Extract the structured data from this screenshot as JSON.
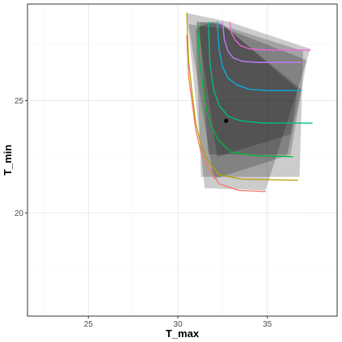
{
  "chart_data": {
    "type": "line",
    "title": "",
    "xlabel": "T_max",
    "ylabel": "T_min",
    "xlim": [
      21.6,
      38.9
    ],
    "ylim": [
      15.4,
      29.3
    ],
    "x_ticks": [
      25,
      30,
      35
    ],
    "y_ticks": [
      20,
      25
    ],
    "x_tick_labels": [
      "25",
      "30",
      "35"
    ],
    "y_tick_labels": [
      "20",
      "25"
    ],
    "grid": true,
    "legend": "none",
    "colors": {
      "background": "#ffffff",
      "panel_border": "#333333",
      "grid_major": "#ebebeb",
      "grid_minor": "#f5f5f5",
      "band_fill": "#000000",
      "point": "#000000"
    },
    "bands": [
      {
        "opacity": 0.2,
        "polygon": [
          [
            30.5,
            28.9
          ],
          [
            32.9,
            28.5
          ],
          [
            37.4,
            27.3
          ],
          [
            34.9,
            21.0
          ],
          [
            31.5,
            21.1
          ],
          [
            30.5,
            28.9
          ]
        ]
      },
      {
        "opacity": 0.2,
        "polygon": [
          [
            30.6,
            28.4
          ],
          [
            32.7,
            28.2
          ],
          [
            37.2,
            26.8
          ],
          [
            36.3,
            22.6
          ],
          [
            32.0,
            21.5
          ],
          [
            30.6,
            28.4
          ]
        ]
      },
      {
        "opacity": 0.2,
        "polygon": [
          [
            31.1,
            28.5
          ],
          [
            32.5,
            28.4
          ],
          [
            36.7,
            25.5
          ],
          [
            36.3,
            23.5
          ],
          [
            32.2,
            22.5
          ],
          [
            31.1,
            28.5
          ]
        ]
      },
      {
        "opacity": 0.2,
        "polygon": [
          [
            31.2,
            28.5
          ],
          [
            32.3,
            28.5
          ],
          [
            36.9,
            25.5
          ],
          [
            36.1,
            22.6
          ],
          [
            31.7,
            22.6
          ],
          [
            31.2,
            28.5
          ]
        ]
      },
      {
        "opacity": 0.2,
        "polygon": [
          [
            31.0,
            28.2
          ],
          [
            31.9,
            28.5
          ],
          [
            37.0,
            27.2
          ],
          [
            36.8,
            21.6
          ],
          [
            31.3,
            21.6
          ],
          [
            31.0,
            28.2
          ]
        ]
      }
    ],
    "series": [
      {
        "color": "#f8766d",
        "points": [
          [
            30.5,
            27.9
          ],
          [
            30.6,
            26.1
          ],
          [
            30.8,
            24.9
          ],
          [
            31.0,
            23.7
          ],
          [
            31.3,
            22.7
          ],
          [
            31.7,
            22.0
          ],
          [
            32.3,
            21.3
          ],
          [
            33.4,
            21.0
          ],
          [
            34.9,
            20.95
          ]
        ]
      },
      {
        "color": "#b79f00",
        "points": [
          [
            30.5,
            28.9
          ],
          [
            30.6,
            26.8
          ],
          [
            30.8,
            25.3
          ],
          [
            31.0,
            24.0
          ],
          [
            31.3,
            23.0
          ],
          [
            31.7,
            22.3
          ],
          [
            32.3,
            21.7
          ],
          [
            33.6,
            21.5
          ],
          [
            36.7,
            21.45
          ]
        ]
      },
      {
        "color": "#00ba38",
        "points": [
          [
            31.1,
            28.5
          ],
          [
            31.2,
            26.9
          ],
          [
            31.4,
            25.6
          ],
          [
            31.6,
            24.6
          ],
          [
            31.9,
            23.8
          ],
          [
            32.3,
            23.2
          ],
          [
            33.0,
            22.7
          ],
          [
            34.3,
            22.55
          ],
          [
            36.4,
            22.5
          ]
        ]
      },
      {
        "color": "#00c08b",
        "points": [
          [
            31.7,
            28.5
          ],
          [
            31.8,
            26.6
          ],
          [
            32.0,
            25.5
          ],
          [
            32.3,
            24.8
          ],
          [
            32.8,
            24.3
          ],
          [
            33.5,
            24.1
          ],
          [
            34.8,
            24.0
          ],
          [
            37.5,
            24.0
          ]
        ]
      },
      {
        "color": "#00b4ef",
        "points": [
          [
            32.2,
            28.5
          ],
          [
            32.3,
            27.3
          ],
          [
            32.5,
            26.5
          ],
          [
            32.8,
            26.0
          ],
          [
            33.3,
            25.7
          ],
          [
            34.0,
            25.5
          ],
          [
            35.0,
            25.45
          ],
          [
            36.9,
            25.45
          ]
        ]
      },
      {
        "color": "#c77cff",
        "points": [
          [
            32.5,
            28.5
          ],
          [
            32.6,
            27.7
          ],
          [
            32.8,
            27.2
          ],
          [
            33.1,
            26.9
          ],
          [
            33.6,
            26.75
          ],
          [
            34.4,
            26.7
          ],
          [
            36.9,
            26.7
          ]
        ]
      },
      {
        "color": "#f564e3",
        "points": [
          [
            32.9,
            28.5
          ],
          [
            33.0,
            28.0
          ],
          [
            33.2,
            27.7
          ],
          [
            33.5,
            27.45
          ],
          [
            34.0,
            27.3
          ],
          [
            35.0,
            27.25
          ],
          [
            37.4,
            27.25
          ]
        ]
      }
    ],
    "points": [
      {
        "x": 32.7,
        "y": 24.1
      }
    ]
  }
}
